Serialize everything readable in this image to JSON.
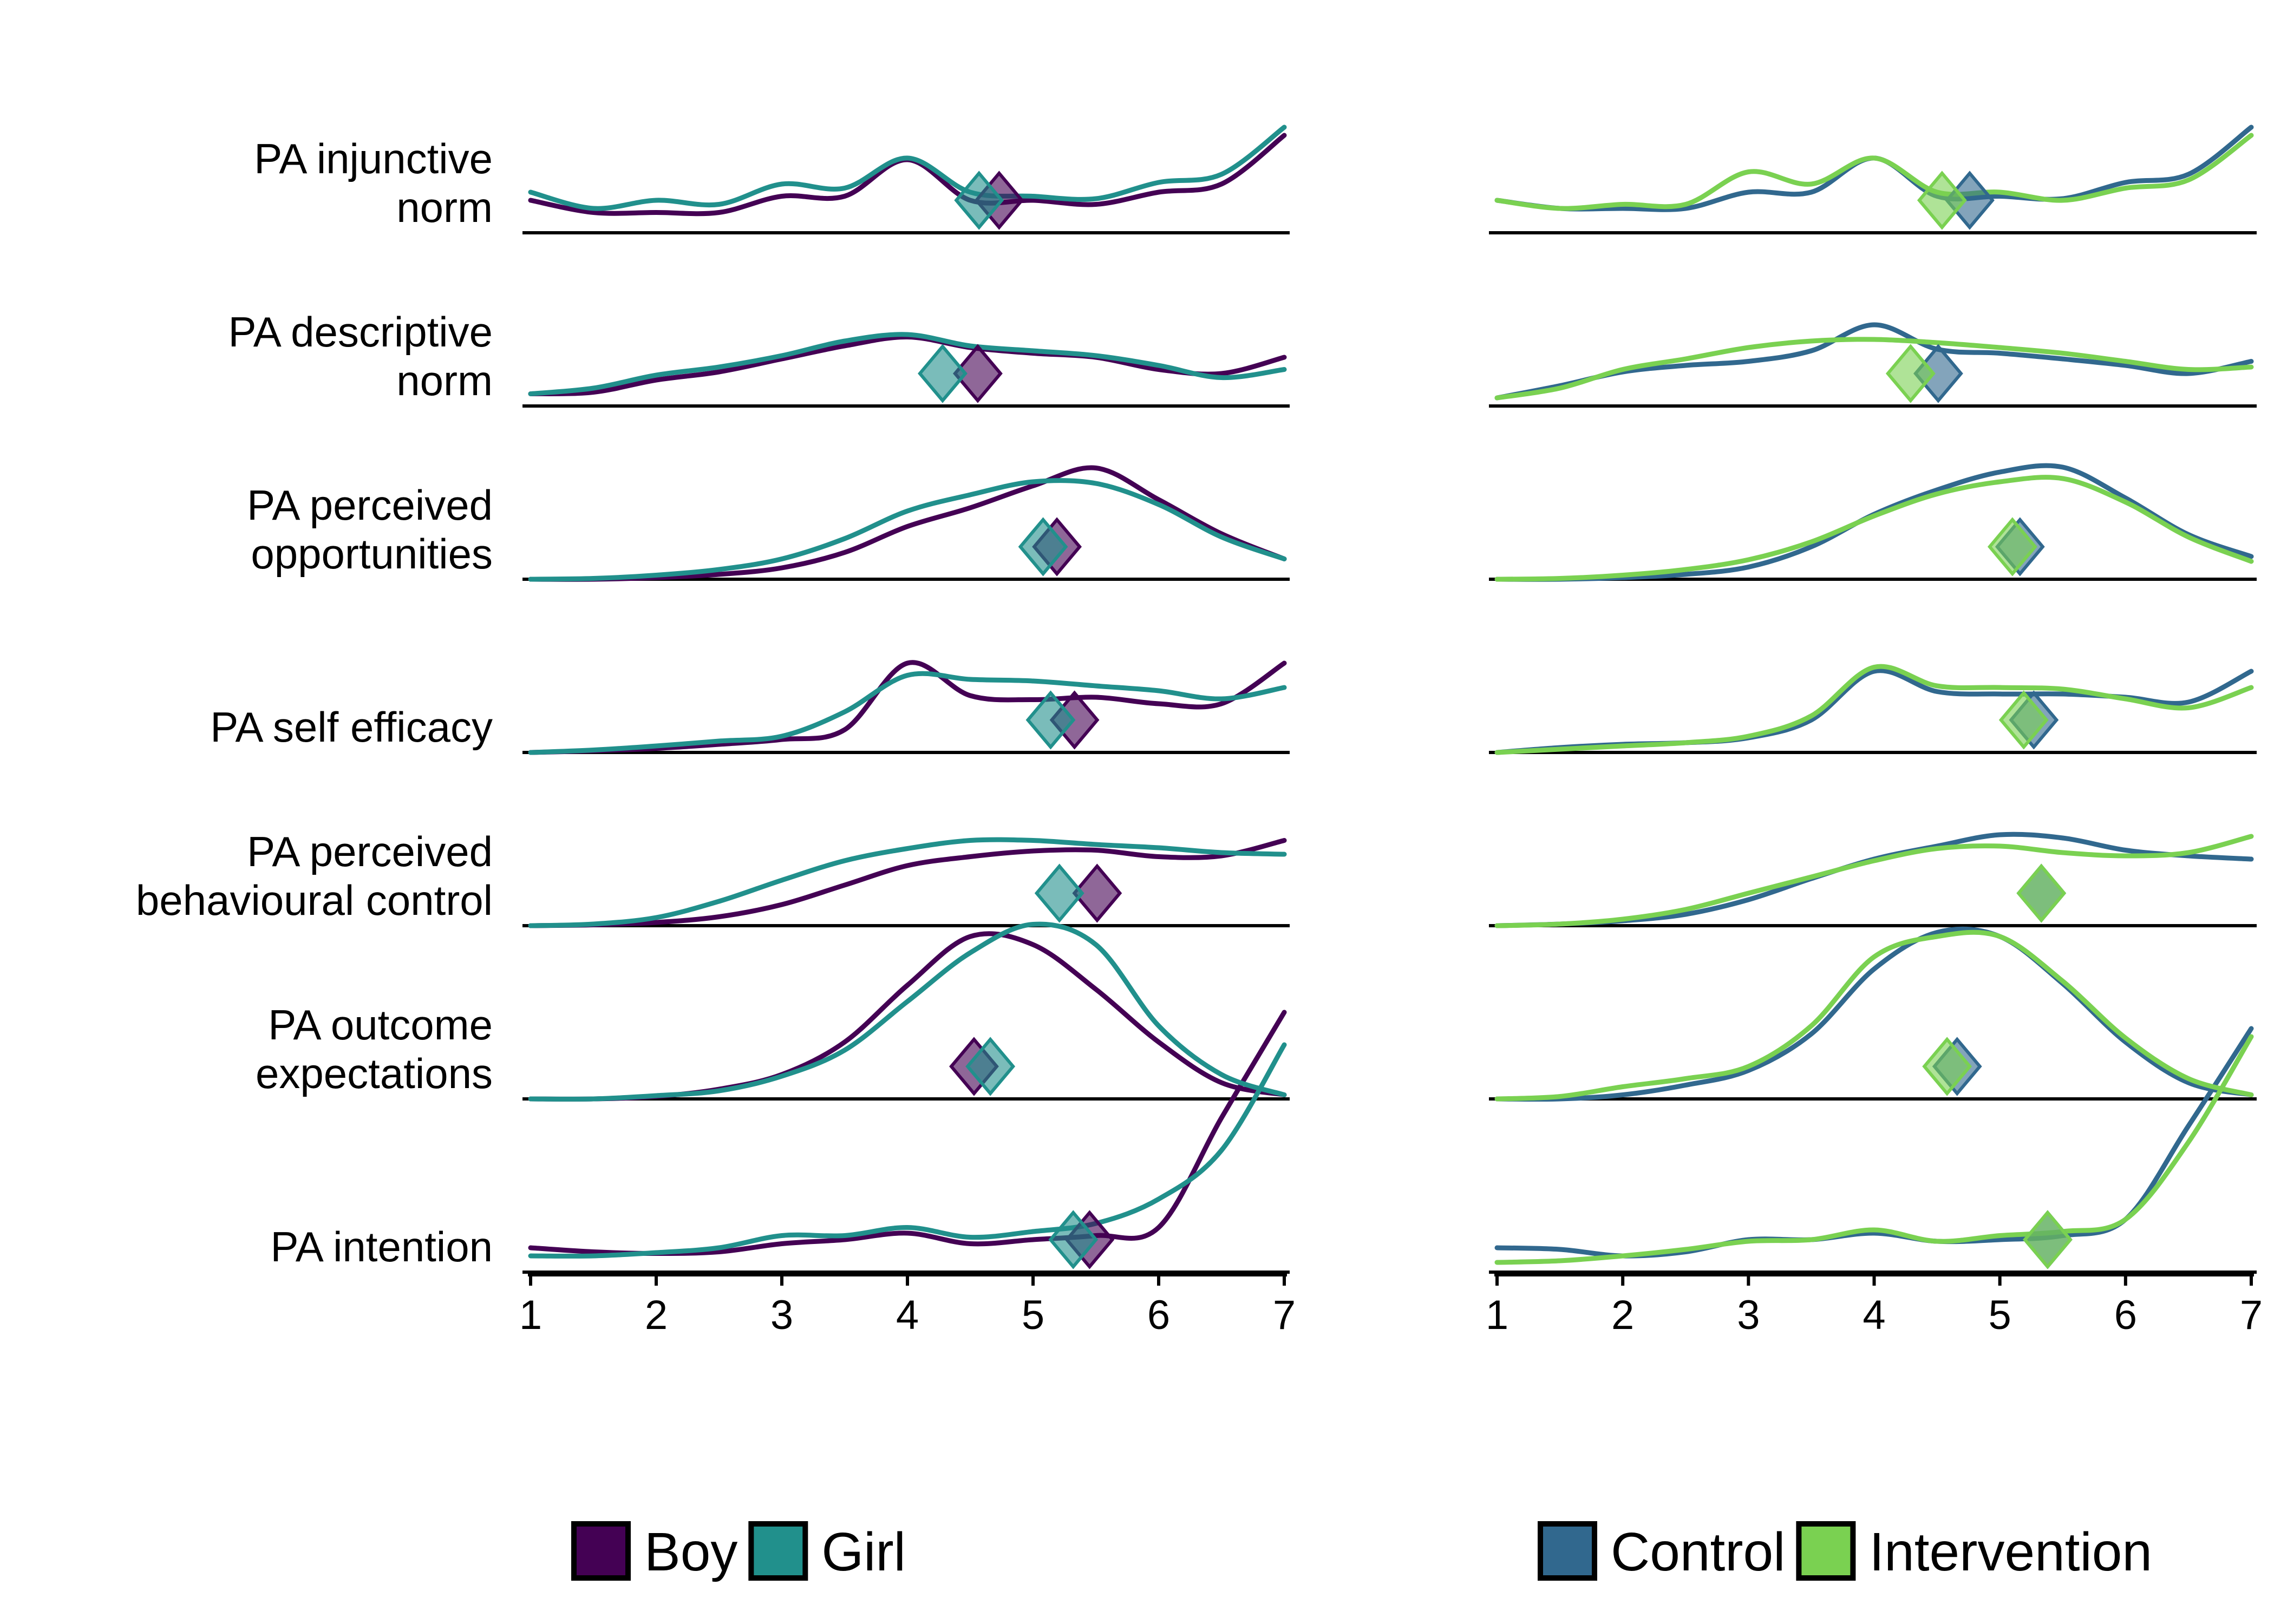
{
  "chart_data": [
    {
      "type": "ridgeline",
      "panel": "left",
      "xlim": [
        1,
        7
      ],
      "x_ticks": [
        "1",
        "2",
        "3",
        "4",
        "5",
        "6",
        "7"
      ],
      "rows": [
        "PA injunctive norm",
        "PA descriptive norm",
        "PA perceived opportunities",
        "PA self efficacy",
        "PA perceived behavioural control",
        "PA outcome expectations",
        "PA intention"
      ],
      "row_label_lines": [
        [
          "PA injunctive",
          "norm"
        ],
        [
          "PA descriptive",
          "norm"
        ],
        [
          "PA perceived",
          "opportunities"
        ],
        [
          "PA self efficacy"
        ],
        [
          "PA perceived",
          "behavioural control"
        ],
        [
          "PA outcome",
          "expectations"
        ],
        [
          "PA intention"
        ]
      ],
      "x": [
        1,
        1.5,
        2,
        2.5,
        3,
        3.5,
        4,
        4.5,
        5,
        5.5,
        6,
        6.5,
        7
      ],
      "series": [
        {
          "name": "Boy",
          "color": "#440154",
          "means": [
            4.73,
            4.56,
            5.19,
            5.33,
            5.51,
            4.53,
            5.45
          ],
          "density": [
            [
              0.4,
              0.25,
              0.25,
              0.25,
              0.45,
              0.45,
              0.9,
              0.4,
              0.4,
              0.35,
              0.5,
              0.6,
              1.2
            ],
            [
              0.15,
              0.17,
              0.32,
              0.42,
              0.58,
              0.74,
              0.85,
              0.72,
              0.65,
              0.6,
              0.45,
              0.4,
              0.6
            ],
            [
              0.0,
              0.0,
              0.02,
              0.06,
              0.14,
              0.33,
              0.65,
              0.88,
              1.15,
              1.37,
              0.98,
              0.56,
              0.25
            ],
            [
              0.0,
              0.02,
              0.05,
              0.1,
              0.16,
              0.28,
              1.1,
              0.7,
              0.65,
              0.68,
              0.6,
              0.6,
              1.1
            ],
            [
              0.0,
              0.01,
              0.04,
              0.11,
              0.26,
              0.5,
              0.74,
              0.85,
              0.92,
              0.93,
              0.85,
              0.86,
              1.05
            ],
            [
              0.0,
              0.0,
              0.03,
              0.12,
              0.3,
              0.7,
              1.4,
              2.0,
              1.9,
              1.35,
              0.7,
              0.2,
              0.05
            ],
            [
              0.3,
              0.25,
              0.23,
              0.25,
              0.35,
              0.4,
              0.48,
              0.35,
              0.4,
              0.45,
              0.55,
              1.9,
              3.2
            ]
          ]
        },
        {
          "name": "Girl",
          "color": "#21908c",
          "means": [
            4.57,
            4.28,
            5.08,
            5.14,
            5.21,
            4.66,
            5.32
          ],
          "density": [
            [
              0.5,
              0.3,
              0.4,
              0.35,
              0.6,
              0.55,
              0.92,
              0.5,
              0.45,
              0.42,
              0.62,
              0.72,
              1.3
            ],
            [
              0.15,
              0.22,
              0.38,
              0.48,
              0.62,
              0.8,
              0.88,
              0.74,
              0.68,
              0.62,
              0.5,
              0.35,
              0.45
            ],
            [
              0.0,
              0.01,
              0.05,
              0.12,
              0.25,
              0.5,
              0.84,
              1.04,
              1.2,
              1.18,
              0.92,
              0.52,
              0.25
            ],
            [
              0.0,
              0.03,
              0.08,
              0.14,
              0.2,
              0.5,
              0.95,
              0.9,
              0.88,
              0.82,
              0.76,
              0.66,
              0.8
            ],
            [
              0.0,
              0.02,
              0.1,
              0.3,
              0.56,
              0.8,
              0.95,
              1.05,
              1.05,
              1.0,
              0.96,
              0.9,
              0.88
            ],
            [
              0.0,
              0.0,
              0.04,
              0.1,
              0.28,
              0.6,
              1.2,
              1.8,
              2.15,
              1.9,
              0.9,
              0.3,
              0.05
            ],
            [
              0.2,
              0.2,
              0.24,
              0.3,
              0.45,
              0.45,
              0.55,
              0.43,
              0.5,
              0.6,
              0.9,
              1.5,
              2.8
            ]
          ]
        }
      ],
      "legend": {
        "position": "bottom",
        "entries": [
          "Boy",
          "Girl"
        ]
      }
    },
    {
      "type": "ridgeline",
      "panel": "right",
      "xlim": [
        1,
        7
      ],
      "x_ticks": [
        "1",
        "2",
        "3",
        "4",
        "5",
        "6",
        "7"
      ],
      "rows": [
        "PA injunctive norm",
        "PA descriptive norm",
        "PA perceived opportunities",
        "PA self efficacy",
        "PA perceived behavioural control",
        "PA outcome expectations",
        "PA intention"
      ],
      "x": [
        1,
        1.5,
        2,
        2.5,
        3,
        3.5,
        4,
        4.5,
        5,
        5.5,
        6,
        6.5,
        7
      ],
      "series": [
        {
          "name": "Control",
          "color": "#31688e",
          "means": [
            4.76,
            4.51,
            5.16,
            5.27,
            5.33,
            4.66,
            5.38
          ],
          "density": [
            [
              0.4,
              0.3,
              0.3,
              0.3,
              0.5,
              0.5,
              0.92,
              0.45,
              0.45,
              0.42,
              0.62,
              0.72,
              1.3
            ],
            [
              0.1,
              0.25,
              0.42,
              0.5,
              0.55,
              0.68,
              1.0,
              0.7,
              0.65,
              0.58,
              0.5,
              0.4,
              0.55
            ],
            [
              0.0,
              0.0,
              0.02,
              0.06,
              0.15,
              0.4,
              0.8,
              1.1,
              1.32,
              1.38,
              1.0,
              0.55,
              0.28
            ],
            [
              0.0,
              0.06,
              0.1,
              0.12,
              0.18,
              0.4,
              1.0,
              0.75,
              0.72,
              0.72,
              0.68,
              0.62,
              1.0
            ],
            [
              0.0,
              0.02,
              0.06,
              0.14,
              0.32,
              0.58,
              0.82,
              0.98,
              1.12,
              1.08,
              0.93,
              0.86,
              0.82
            ],
            [
              0.0,
              0.0,
              0.05,
              0.17,
              0.35,
              0.8,
              1.6,
              2.05,
              2.0,
              1.42,
              0.7,
              0.2,
              0.05
            ],
            [
              0.3,
              0.28,
              0.2,
              0.25,
              0.4,
              0.4,
              0.48,
              0.38,
              0.4,
              0.45,
              0.65,
              1.8,
              3.0
            ]
          ]
        },
        {
          "name": "Intervention",
          "color": "#7ad151",
          "means": [
            4.54,
            4.29,
            5.1,
            5.19,
            5.33,
            4.58,
            5.38
          ],
          "density": [
            [
              0.4,
              0.3,
              0.35,
              0.35,
              0.75,
              0.6,
              0.92,
              0.5,
              0.5,
              0.4,
              0.55,
              0.65,
              1.2
            ],
            [
              0.1,
              0.22,
              0.45,
              0.58,
              0.72,
              0.8,
              0.82,
              0.78,
              0.72,
              0.65,
              0.55,
              0.45,
              0.48
            ],
            [
              0.0,
              0.01,
              0.05,
              0.12,
              0.24,
              0.46,
              0.78,
              1.05,
              1.2,
              1.24,
              0.95,
              0.52,
              0.22
            ],
            [
              0.0,
              0.04,
              0.08,
              0.12,
              0.2,
              0.45,
              1.05,
              0.82,
              0.8,
              0.78,
              0.66,
              0.55,
              0.8
            ],
            [
              0.0,
              0.02,
              0.08,
              0.2,
              0.4,
              0.6,
              0.8,
              0.95,
              0.98,
              0.9,
              0.86,
              0.9,
              1.1
            ],
            [
              0.0,
              0.03,
              0.15,
              0.25,
              0.4,
              0.9,
              1.75,
              2.0,
              2.0,
              1.45,
              0.75,
              0.25,
              0.05
            ],
            [
              0.12,
              0.14,
              0.2,
              0.28,
              0.38,
              0.4,
              0.52,
              0.38,
              0.45,
              0.5,
              0.65,
              1.6,
              2.9
            ]
          ]
        }
      ],
      "legend": {
        "position": "bottom",
        "entries": [
          "Control",
          "Intervention"
        ]
      }
    }
  ]
}
